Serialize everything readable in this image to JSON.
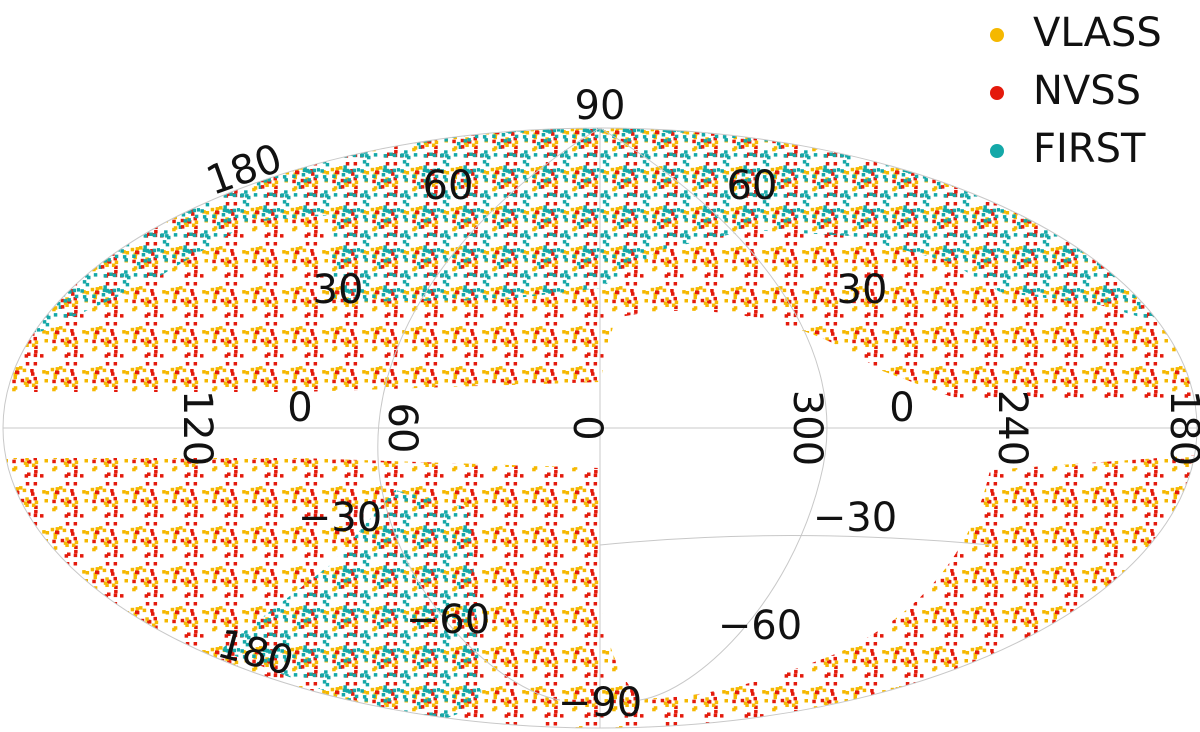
{
  "legend": [
    {
      "label": "VLASS",
      "color": "#f5b800"
    },
    {
      "label": "NVSS",
      "color": "#e41a0c"
    },
    {
      "label": "FIRST",
      "color": "#14a8a8"
    }
  ],
  "grid_labels": [
    "90",
    "180",
    "60",
    "60",
    "30",
    "30",
    "120",
    "0",
    "60",
    "0",
    "300",
    "0",
    "240",
    "180",
    "−30",
    "−30",
    "−60",
    "−60",
    "180",
    "−90"
  ]
}
